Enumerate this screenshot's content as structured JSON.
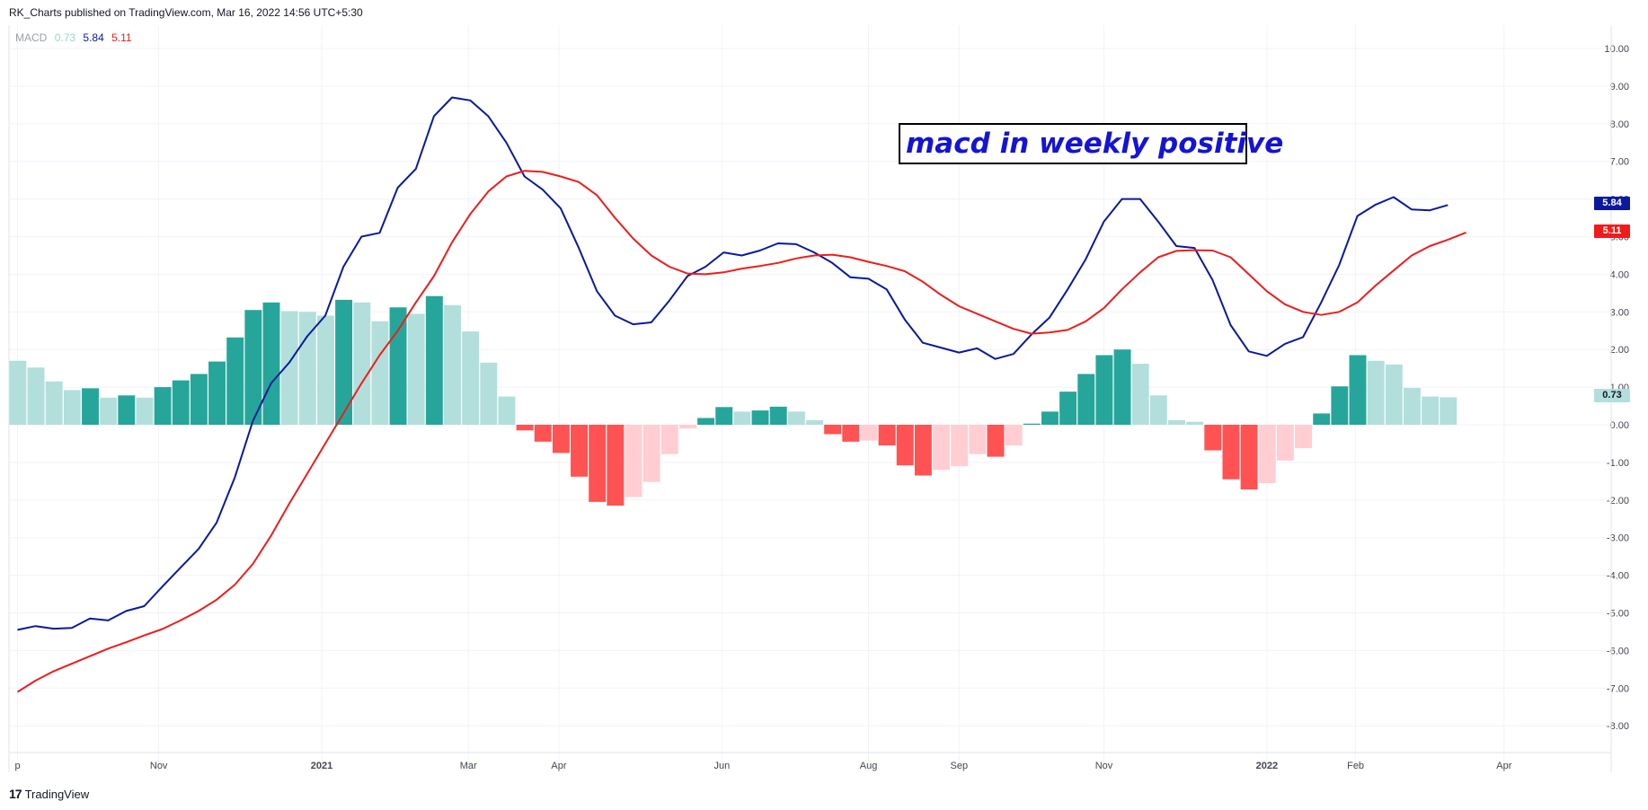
{
  "header": {
    "published": "RK_Charts published on TradingView.com, Mar 16, 2022 14:56 UTC+5:30"
  },
  "legend": {
    "name": "MACD",
    "hist": "0.73",
    "macd": "5.84",
    "signal": "5.11"
  },
  "annotation": {
    "text": "macd in weekly positive"
  },
  "footer": {
    "logo": "17",
    "brand": "TradingView"
  },
  "colors": {
    "macd_line": "#0b1a9c",
    "signal_line": "#f01c1c",
    "hist_pos_strong": "#26a69a",
    "hist_pos_weak": "#b2dfdb",
    "hist_neg_strong": "#ff5252",
    "hist_neg_weak": "#ffcdd2",
    "annotation_text": "#1414d6"
  },
  "price_labels": {
    "macd": "5.84",
    "signal": "5.11",
    "hist": "0.73"
  },
  "chart_data": {
    "type": "line",
    "title": "",
    "xlabel": "",
    "ylabel": "",
    "ylim": [
      -8.6,
      10.3
    ],
    "y_ticks": [
      "10.00",
      "9.00",
      "8.00",
      "7.00",
      "6.00",
      "5.00",
      "4.00",
      "3.00",
      "2.00",
      "1.00",
      "0.00",
      "-1.00",
      "-2.00",
      "-3.00",
      "-4.00",
      "-5.00",
      "-6.00",
      "-7.00",
      "-8.00"
    ],
    "x_ticks": [
      {
        "label": "p",
        "index": 0
      },
      {
        "label": "Nov",
        "index": 7.8
      },
      {
        "label": "2021",
        "index": 16.8,
        "bold": true
      },
      {
        "label": "Mar",
        "index": 24.9
      },
      {
        "label": "Apr",
        "index": 29.9
      },
      {
        "label": "Jun",
        "index": 38.9
      },
      {
        "label": "Aug",
        "index": 47.0
      },
      {
        "label": "Sep",
        "index": 52.0
      },
      {
        "label": "Nov",
        "index": 60.0
      },
      {
        "label": "2022",
        "index": 69.0,
        "bold": true
      },
      {
        "label": "Feb",
        "index": 73.9
      },
      {
        "label": "Apr",
        "index": 82.1
      }
    ],
    "grid": true,
    "legend_position": "top-left",
    "series": [
      {
        "name": "MACD",
        "kind": "line",
        "values": [
          -5.45,
          -5.35,
          -5.42,
          -5.4,
          -5.15,
          -5.2,
          -4.95,
          -4.82,
          -4.3,
          -3.8,
          -3.3,
          -2.6,
          -1.4,
          0.1,
          1.1,
          1.65,
          2.35,
          2.9,
          4.2,
          5.0,
          5.1,
          6.3,
          6.8,
          8.2,
          8.7,
          8.62,
          8.2,
          7.5,
          6.6,
          6.25,
          5.75,
          4.7,
          3.55,
          2.9,
          2.67,
          2.72,
          3.3,
          3.95,
          4.2,
          4.58,
          4.5,
          4.63,
          4.82,
          4.8,
          4.58,
          4.3,
          3.92,
          3.88,
          3.6,
          2.8,
          2.18,
          2.05,
          1.92,
          2.03,
          1.75,
          1.88,
          2.4,
          2.85,
          3.6,
          4.4,
          5.4,
          6.0,
          6.0,
          5.4,
          4.75,
          4.7,
          3.85,
          2.65,
          1.95,
          1.83,
          2.15,
          2.33,
          3.25,
          4.25,
          5.55,
          5.85,
          6.05,
          5.72,
          5.7,
          5.84
        ]
      },
      {
        "name": "Signal",
        "kind": "line",
        "values": [
          -7.1,
          -6.8,
          -6.55,
          -6.35,
          -6.15,
          -5.95,
          -5.78,
          -5.6,
          -5.43,
          -5.2,
          -4.95,
          -4.65,
          -4.25,
          -3.7,
          -2.95,
          -2.1,
          -1.3,
          -0.5,
          0.3,
          1.1,
          1.85,
          2.5,
          3.25,
          3.95,
          4.85,
          5.6,
          6.2,
          6.6,
          6.75,
          6.72,
          6.6,
          6.45,
          6.1,
          5.5,
          4.95,
          4.5,
          4.2,
          4.02,
          4.0,
          4.05,
          4.15,
          4.22,
          4.3,
          4.42,
          4.5,
          4.52,
          4.45,
          4.33,
          4.22,
          4.08,
          3.8,
          3.45,
          3.15,
          2.95,
          2.75,
          2.55,
          2.42,
          2.45,
          2.52,
          2.75,
          3.1,
          3.6,
          4.05,
          4.45,
          4.62,
          4.64,
          4.63,
          4.45,
          4.0,
          3.55,
          3.2,
          3.0,
          2.92,
          3.0,
          3.25,
          3.7,
          4.1,
          4.5,
          4.75,
          4.92,
          5.11
        ]
      },
      {
        "name": "Histogram",
        "kind": "bar",
        "values": [
          1.7,
          1.52,
          1.15,
          0.92,
          0.97,
          0.72,
          0.78,
          0.72,
          1.0,
          1.18,
          1.35,
          1.68,
          2.32,
          3.05,
          3.25,
          3.02,
          3.0,
          2.9,
          3.32,
          3.25,
          2.75,
          3.12,
          2.95,
          3.42,
          3.18,
          2.48,
          1.65,
          0.75,
          -0.15,
          -0.45,
          -0.75,
          -1.38,
          -2.05,
          -2.15,
          -1.92,
          -1.52,
          -0.78,
          -0.1,
          0.18,
          0.47,
          0.35,
          0.38,
          0.48,
          0.35,
          0.12,
          -0.25,
          -0.45,
          -0.42,
          -0.55,
          -1.08,
          -1.35,
          -1.2,
          -1.1,
          -0.78,
          -0.85,
          -0.55,
          0.03,
          0.35,
          0.88,
          1.35,
          1.85,
          2.0,
          1.62,
          0.78,
          0.12,
          0.08,
          -0.68,
          -1.45,
          -1.72,
          -1.55,
          -0.95,
          -0.62,
          0.3,
          1.02,
          1.85,
          1.7,
          1.6,
          0.98,
          0.75,
          0.73
        ],
        "styles": [
          "w",
          "w",
          "w",
          "w",
          "s",
          "w",
          "s",
          "w",
          "s",
          "s",
          "s",
          "s",
          "s",
          "s",
          "s",
          "w",
          "w",
          "w",
          "s",
          "w",
          "w",
          "s",
          "w",
          "s",
          "w",
          "w",
          "w",
          "w",
          "s",
          "s",
          "s",
          "s",
          "s",
          "s",
          "w",
          "w",
          "w",
          "w",
          "s",
          "s",
          "w",
          "s",
          "s",
          "w",
          "w",
          "s",
          "s",
          "w",
          "s",
          "s",
          "s",
          "w",
          "w",
          "w",
          "s",
          "w",
          "s",
          "s",
          "s",
          "s",
          "s",
          "s",
          "w",
          "w",
          "w",
          "w",
          "s",
          "s",
          "s",
          "w",
          "w",
          "w",
          "s",
          "s",
          "s",
          "w",
          "w",
          "w",
          "w",
          "w"
        ]
      }
    ]
  }
}
